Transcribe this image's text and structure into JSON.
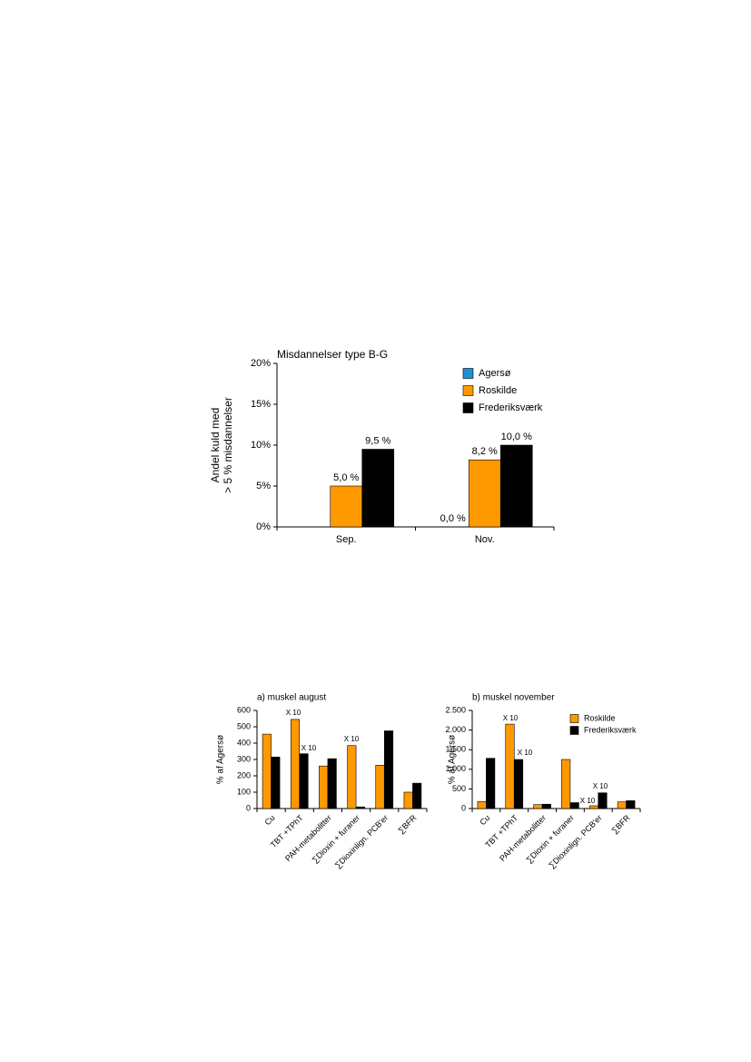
{
  "chart_data": [
    {
      "type": "bar",
      "title": "Misdannelser type B-G",
      "ylabel": [
        "Andel kuld med",
        "> 5 % misdannelser"
      ],
      "categories": [
        "Sep.",
        "Nov."
      ],
      "series": [
        {
          "name": "Agersø",
          "color": "#1e90d0",
          "values": [
            null,
            0.0
          ],
          "value_labels": [
            null,
            "0,0 %"
          ]
        },
        {
          "name": "Roskilde",
          "color": "#ff9900",
          "values": [
            5.0,
            8.2
          ],
          "value_labels": [
            "5,0 %",
            "8,2 %"
          ]
        },
        {
          "name": "Frederiksværk",
          "color": "#000000",
          "values": [
            9.5,
            10.0
          ],
          "value_labels": [
            "9,5 %",
            "10,0 %"
          ]
        }
      ],
      "ylim": [
        0,
        20
      ],
      "yticks": [
        {
          "value": 0,
          "label": "0%"
        },
        {
          "value": 5,
          "label": "5%"
        },
        {
          "value": 10,
          "label": "10%"
        },
        {
          "value": 15,
          "label": "15%"
        },
        {
          "value": 20,
          "label": "20%"
        }
      ],
      "legend": "upper right"
    },
    {
      "type": "bar",
      "title": "a) muskel august",
      "ylabel": [
        "% af Agersø"
      ],
      "categories": [
        "Cu",
        "TBT +TPhT",
        "PAH-metabolitter",
        "∑Dioxin + furaner",
        "∑Dioxinlign. PCB'er",
        "∑BFR"
      ],
      "series": [
        {
          "name": "Roskilde",
          "color": "#ff9900",
          "values": [
            455,
            545,
            260,
            385,
            265,
            100
          ]
        },
        {
          "name": "Frederiksværk",
          "color": "#000000",
          "values": [
            315,
            335,
            305,
            10,
            475,
            155
          ]
        }
      ],
      "ylim": [
        0,
        600
      ],
      "yticks": [
        0,
        100,
        200,
        300,
        400,
        500,
        600
      ],
      "annotations": [
        "X 10",
        "X 10",
        "X 10"
      ]
    },
    {
      "type": "bar",
      "title": "b) muskel november",
      "ylabel": [
        "% af Agersø"
      ],
      "categories": [
        "Cu",
        "TBT +TPhT",
        "PAH-metabolitter",
        "∑Dioxin + furaner",
        "∑Dioxinlign. PCB'er",
        "∑BFR"
      ],
      "series": [
        {
          "name": "Roskilde",
          "color": "#ff9900",
          "values": [
            180,
            2150,
            100,
            1250,
            70,
            170
          ]
        },
        {
          "name": "Frederiksværk",
          "color": "#000000",
          "values": [
            1280,
            1250,
            110,
            150,
            400,
            200
          ]
        }
      ],
      "ylim": [
        0,
        2500
      ],
      "yticks": [
        0,
        500,
        {
          "value": 1000,
          "label": "1.000"
        },
        {
          "value": 1500,
          "label": "1.500"
        },
        {
          "value": 2000,
          "label": "2.000"
        },
        {
          "value": 2500,
          "label": "2.500"
        }
      ],
      "annotations": [
        "X 10",
        "X 10",
        "X 10",
        "X 10"
      ],
      "legend": "upper right"
    }
  ]
}
